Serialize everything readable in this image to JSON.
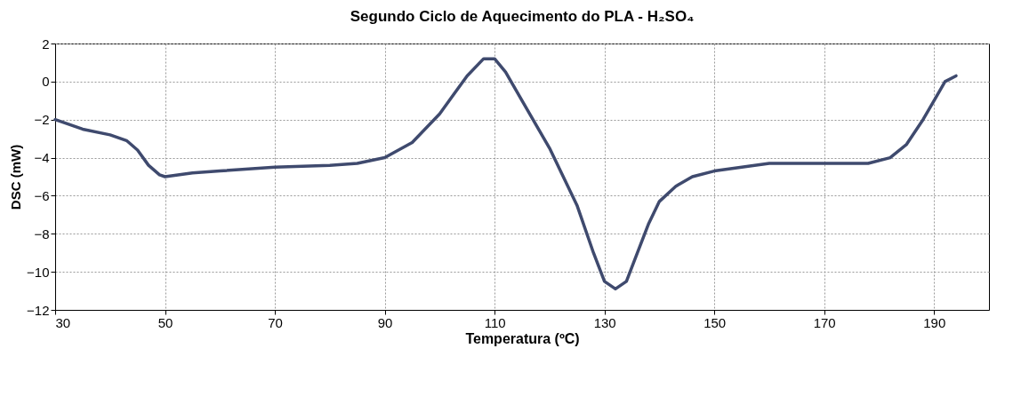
{
  "chart_data": {
    "type": "line",
    "title": "Segundo Ciclo de Aquecimento do PLA - H₂SO₄",
    "xlabel": "Temperatura (ºC)",
    "ylabel": "DSC (mW)",
    "x": [
      30,
      35,
      40,
      43,
      45,
      47,
      49,
      50,
      55,
      60,
      70,
      80,
      85,
      90,
      95,
      100,
      105,
      108,
      110,
      112,
      115,
      120,
      125,
      128,
      130,
      132,
      134,
      136,
      138,
      140,
      143,
      146,
      150,
      155,
      160,
      170,
      178,
      182,
      185,
      188,
      190,
      192,
      194
    ],
    "series": [
      {
        "color": "#3f4a6e",
        "values": [
          -2,
          -2.5,
          -2.8,
          -3.1,
          -3.6,
          -4.4,
          -4.9,
          -5,
          -4.8,
          -4.7,
          -4.5,
          -4.4,
          -4.3,
          -4,
          -3.2,
          -1.7,
          0.3,
          1.2,
          1.2,
          0.5,
          -1,
          -3.5,
          -6.5,
          -9,
          -10.5,
          -10.9,
          -10.5,
          -9,
          -7.5,
          -6.3,
          -5.5,
          -5,
          -4.7,
          -4.5,
          -4.3,
          -4.3,
          -4.3,
          -4,
          -3.3,
          -2,
          -1,
          0,
          0.3
        ]
      }
    ],
    "xlim": [
      30,
      200
    ],
    "ylim": [
      -12,
      2
    ],
    "xticks": [
      30,
      50,
      70,
      90,
      110,
      130,
      150,
      170,
      190
    ],
    "yticks": [
      -12,
      -10,
      -8,
      -6,
      -4,
      -2,
      0,
      2
    ],
    "grid": true,
    "line_style": "solid",
    "marker": "none"
  }
}
